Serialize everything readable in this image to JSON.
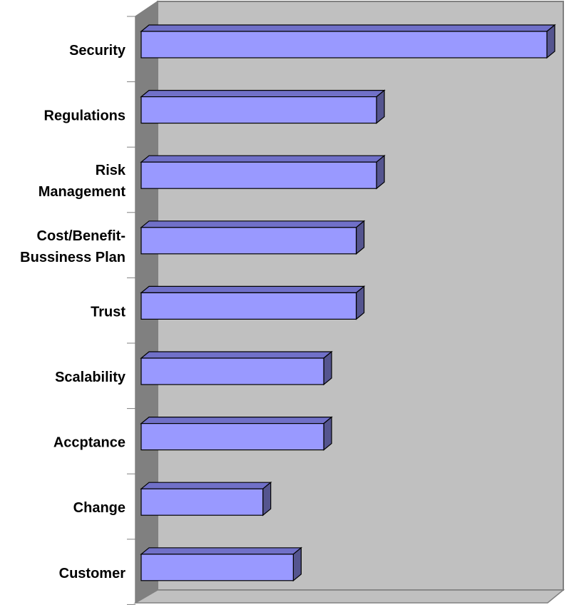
{
  "chart_data": {
    "type": "bar",
    "orientation": "horizontal",
    "three_d": true,
    "title": "",
    "xlabel": "",
    "ylabel": "",
    "categories": [
      [
        "Security"
      ],
      [
        "Regulations"
      ],
      [
        "Risk",
        "Management"
      ],
      [
        "Cost/Benefit-",
        "Bussiness Plan"
      ],
      [
        "Trust"
      ],
      [
        "Scalability"
      ],
      [
        "Accptance"
      ],
      [
        "Change"
      ],
      [
        "Customer"
      ]
    ],
    "values": [
      10,
      5.8,
      5.8,
      5.3,
      5.3,
      4.5,
      4.5,
      3.0,
      3.75
    ],
    "xlim": [
      0,
      10
    ],
    "grid": false,
    "legend": "none",
    "colors": {
      "bar_face": "#9999ff",
      "bar_top": "#7070c8",
      "bar_side": "#55558f",
      "bar_edge": "#000000",
      "back_wall": "#c0c0c0",
      "side_wall": "#808080",
      "floor": "#c0c0c0",
      "wall_edge": "#808080"
    }
  }
}
